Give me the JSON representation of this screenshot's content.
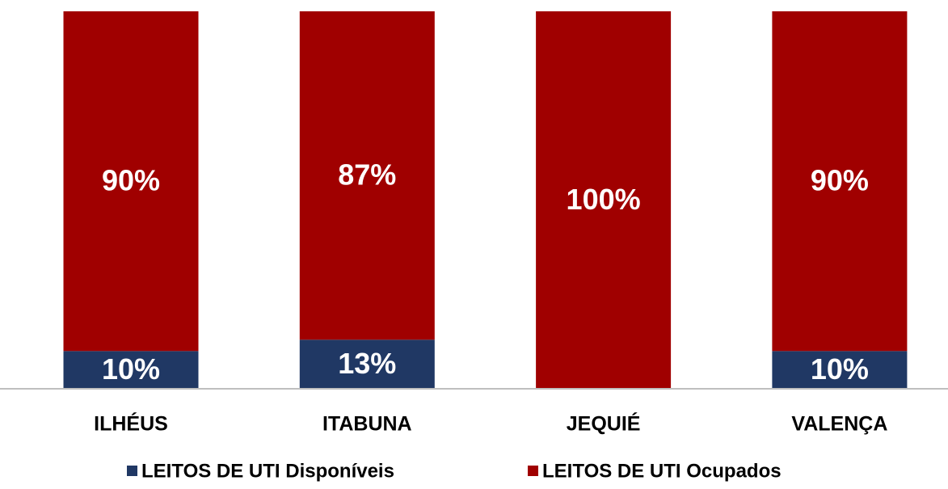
{
  "chart_data": {
    "type": "stacked_bar",
    "categories": [
      "ILHÉUS",
      "ITABUNA",
      "JEQUIÉ",
      "VALENÇA"
    ],
    "series": [
      {
        "name": "LEITOS DE UTI Disponíveis",
        "color": "#203864",
        "values": [
          10,
          13,
          0,
          10
        ],
        "value_labels": [
          "10%",
          "13%",
          null,
          "10%"
        ]
      },
      {
        "name": "LEITOS DE UTI Ocupados",
        "color": "#a00000",
        "values": [
          90,
          87,
          100,
          90
        ],
        "value_labels": [
          "90%",
          "87%",
          "100%",
          "90%"
        ]
      }
    ],
    "ylim": [
      0,
      100
    ]
  }
}
